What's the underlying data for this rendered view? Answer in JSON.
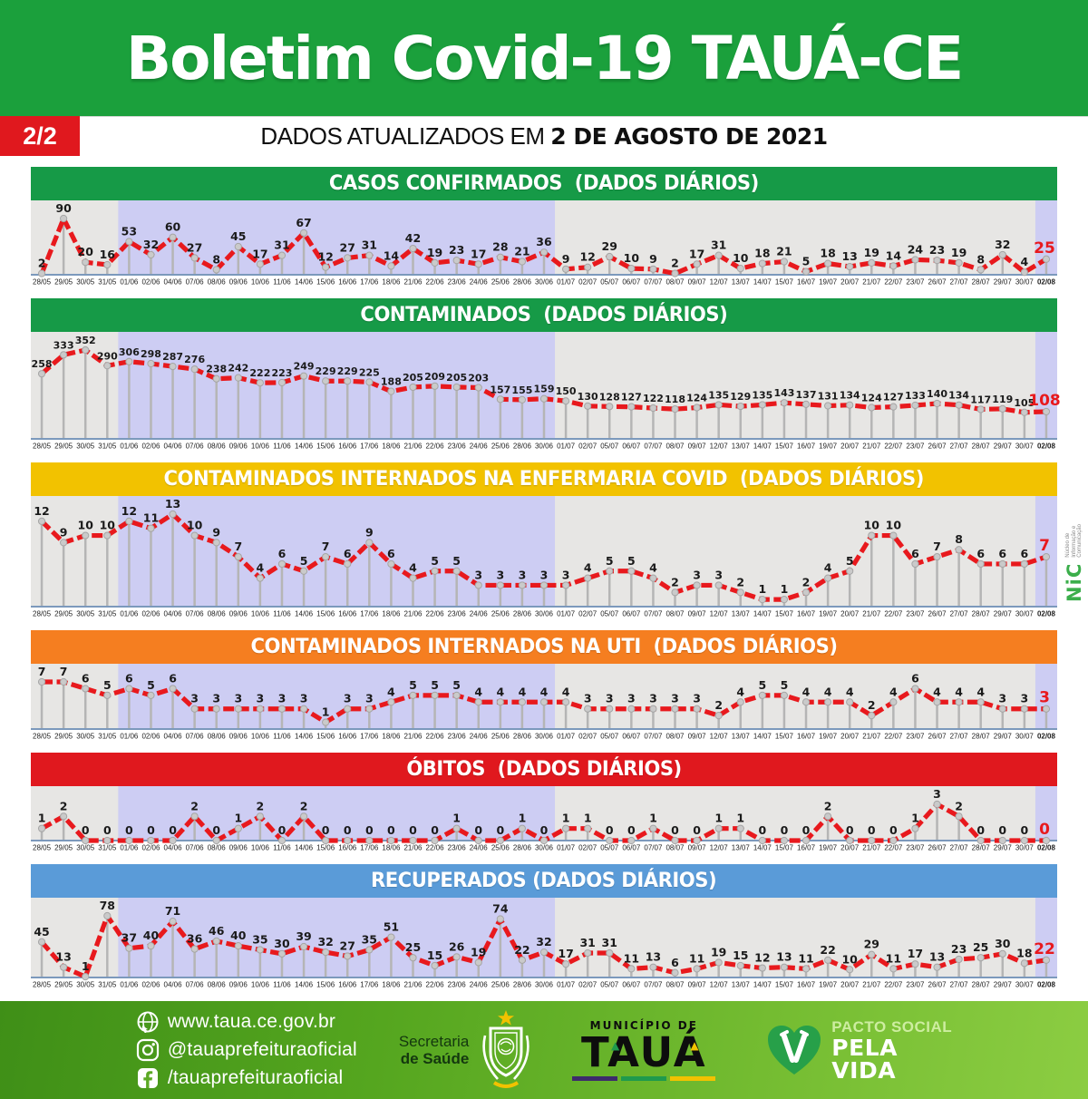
{
  "header": {
    "page_badge": "2/2",
    "title": "Boletim Covid-19 TAUÁ-CE",
    "updated_prefix": "DADOS ATUALIZADOS EM ",
    "updated_date": "2 DE AGOSTO DE 2021",
    "header_bg": "#1BA03C",
    "badge_bg": "#E0181E"
  },
  "plot_style": {
    "line_color": "#E8191D",
    "marker_color": "#CACACA",
    "marker_stroke": "#A5A5A5",
    "stem_color": "#B5B5B5",
    "axis_color": "#7C99BC",
    "bg_lavender": "#CDCDF3",
    "bg_gray": "#E7E6E4",
    "label_color": "#1A1A1A",
    "last_label_color": "#E8191D",
    "gray_band_point_ranges": [
      [
        0,
        3
      ],
      [
        24,
        45
      ]
    ]
  },
  "chart_data": [
    {
      "id": "confirmados",
      "type": "line",
      "title": "CASOS CONFIRMADOS  (DADOS DIÁRIOS)",
      "title_bg": "#169A47",
      "categories": [
        "28/05",
        "29/05",
        "30/05",
        "31/05",
        "01/06",
        "02/06",
        "04/06",
        "07/06",
        "08/06",
        "09/06",
        "10/06",
        "11/06",
        "14/06",
        "15/06",
        "16/06",
        "17/06",
        "18/06",
        "21/06",
        "22/06",
        "23/06",
        "24/06",
        "25/06",
        "28/06",
        "30/06",
        "01/07",
        "02/07",
        "05/07",
        "06/07",
        "07/07",
        "08/07",
        "09/07",
        "12/07",
        "13/07",
        "14/07",
        "15/07",
        "16/07",
        "19/07",
        "20/07",
        "21/07",
        "22/07",
        "23/07",
        "26/07",
        "27/07",
        "28/07",
        "29/07",
        "30/07",
        "02/08"
      ],
      "values": [
        2,
        90,
        20,
        16,
        53,
        32,
        60,
        27,
        8,
        45,
        17,
        31,
        67,
        12,
        27,
        31,
        14,
        42,
        19,
        23,
        17,
        28,
        21,
        36,
        9,
        12,
        29,
        10,
        9,
        2,
        17,
        31,
        10,
        18,
        21,
        5,
        18,
        13,
        19,
        14,
        24,
        23,
        19,
        8,
        32,
        4,
        25
      ],
      "ylim": [
        0,
        90
      ],
      "grid": false,
      "legend": "none"
    },
    {
      "id": "contaminados",
      "type": "line",
      "title": "CONTAMINADOS  (DADOS DIÁRIOS)",
      "title_bg": "#169A47",
      "categories": [
        "28/05",
        "29/05",
        "30/05",
        "31/05",
        "01/06",
        "02/06",
        "04/06",
        "07/06",
        "08/06",
        "09/06",
        "10/06",
        "11/06",
        "14/06",
        "15/06",
        "16/06",
        "17/06",
        "18/06",
        "21/06",
        "22/06",
        "23/06",
        "24/06",
        "25/06",
        "28/06",
        "30/06",
        "01/07",
        "02/07",
        "05/07",
        "06/07",
        "07/07",
        "08/07",
        "09/07",
        "12/07",
        "13/07",
        "14/07",
        "15/07",
        "16/07",
        "19/07",
        "20/07",
        "21/07",
        "22/07",
        "23/07",
        "26/07",
        "27/07",
        "28/07",
        "29/07",
        "30/07",
        "02/08"
      ],
      "values": [
        258,
        333,
        352,
        290,
        306,
        298,
        287,
        276,
        238,
        242,
        222,
        223,
        249,
        229,
        229,
        225,
        188,
        205,
        209,
        205,
        203,
        157,
        155,
        159,
        150,
        130,
        128,
        127,
        122,
        118,
        124,
        135,
        129,
        135,
        143,
        137,
        131,
        134,
        124,
        127,
        133,
        140,
        134,
        117,
        119,
        105,
        108
      ],
      "ylim": [
        0,
        352
      ],
      "grid": false,
      "legend": "none"
    },
    {
      "id": "enfermaria",
      "type": "line",
      "title": "CONTAMINADOS INTERNADOS NA ENFERMARIA COVID  (DADOS DIÁRIOS)",
      "title_bg": "#F2C200",
      "categories": [
        "28/05",
        "29/05",
        "30/05",
        "31/05",
        "01/06",
        "02/06",
        "04/06",
        "07/06",
        "08/06",
        "09/06",
        "10/06",
        "11/06",
        "14/06",
        "15/06",
        "16/06",
        "17/06",
        "18/06",
        "21/06",
        "22/06",
        "23/06",
        "24/06",
        "25/06",
        "28/06",
        "30/06",
        "01/07",
        "02/07",
        "05/07",
        "06/07",
        "07/07",
        "08/07",
        "09/07",
        "12/07",
        "13/07",
        "14/07",
        "15/07",
        "16/07",
        "19/07",
        "20/07",
        "21/07",
        "22/07",
        "23/07",
        "26/07",
        "27/07",
        "28/07",
        "29/07",
        "30/07",
        "02/08"
      ],
      "values": [
        12,
        9,
        10,
        10,
        12,
        11,
        13,
        10,
        9,
        7,
        4,
        6,
        5,
        7,
        6,
        9,
        6,
        4,
        5,
        5,
        3,
        3,
        3,
        3,
        3,
        4,
        5,
        5,
        4,
        2,
        3,
        3,
        2,
        1,
        1,
        2,
        4,
        5,
        10,
        10,
        6,
        7,
        8,
        6,
        6,
        6,
        7
      ],
      "ylim": [
        0,
        13
      ],
      "grid": false,
      "legend": "none"
    },
    {
      "id": "uti",
      "type": "line",
      "title": "CONTAMINADOS INTERNADOS NA UTI  (DADOS DIÁRIOS)",
      "title_bg": "#F57E20",
      "categories": [
        "28/05",
        "29/05",
        "30/05",
        "31/05",
        "01/06",
        "02/06",
        "04/06",
        "07/06",
        "08/06",
        "09/06",
        "10/06",
        "11/06",
        "14/06",
        "15/06",
        "16/06",
        "17/06",
        "18/06",
        "21/06",
        "22/06",
        "23/06",
        "24/06",
        "25/06",
        "28/06",
        "30/06",
        "01/07",
        "02/07",
        "05/07",
        "06/07",
        "07/07",
        "08/07",
        "09/07",
        "12/07",
        "13/07",
        "14/07",
        "15/07",
        "16/07",
        "19/07",
        "20/07",
        "21/07",
        "22/07",
        "23/07",
        "26/07",
        "27/07",
        "28/07",
        "29/07",
        "30/07",
        "02/08"
      ],
      "values": [
        7,
        7,
        6,
        5,
        6,
        5,
        6,
        3,
        3,
        3,
        3,
        3,
        3,
        1,
        3,
        3,
        4,
        5,
        5,
        5,
        4,
        4,
        4,
        4,
        4,
        3,
        3,
        3,
        3,
        3,
        3,
        2,
        4,
        5,
        5,
        4,
        4,
        4,
        2,
        4,
        6,
        4,
        4,
        4,
        3,
        3,
        3
      ],
      "ylim": [
        0,
        7
      ],
      "grid": false,
      "legend": "none"
    },
    {
      "id": "obitos",
      "type": "line",
      "title": "ÓBITOS  (DADOS DIÁRIOS)",
      "title_bg": "#E0181E",
      "categories": [
        "28/05",
        "29/05",
        "30/05",
        "31/05",
        "01/06",
        "02/06",
        "04/06",
        "07/06",
        "08/06",
        "09/06",
        "10/06",
        "11/06",
        "14/06",
        "15/06",
        "16/06",
        "17/06",
        "18/06",
        "21/06",
        "22/06",
        "23/06",
        "24/06",
        "25/06",
        "28/06",
        "30/06",
        "01/07",
        "02/07",
        "05/07",
        "06/07",
        "07/07",
        "08/07",
        "09/07",
        "12/07",
        "13/07",
        "14/07",
        "15/07",
        "16/07",
        "19/07",
        "20/07",
        "21/07",
        "22/07",
        "23/07",
        "26/07",
        "27/07",
        "28/07",
        "29/07",
        "30/07",
        "02/08"
      ],
      "values": [
        1,
        2,
        0,
        0,
        0,
        0,
        0,
        2,
        0,
        1,
        2,
        0,
        2,
        0,
        0,
        0,
        0,
        0,
        0,
        1,
        0,
        0,
        1,
        0,
        1,
        1,
        0,
        0,
        1,
        0,
        0,
        1,
        1,
        0,
        0,
        0,
        2,
        0,
        0,
        0,
        1,
        3,
        2,
        0,
        0,
        0,
        0
      ],
      "ylim": [
        0,
        3
      ],
      "grid": false,
      "legend": "none"
    },
    {
      "id": "recuperados",
      "type": "line",
      "title": "RECUPERADOS (DADOS DIÁRIOS)",
      "title_bg": "#5A9BD8",
      "categories": [
        "28/05",
        "29/05",
        "30/05",
        "31/05",
        "01/06",
        "02/06",
        "04/06",
        "07/06",
        "08/06",
        "09/06",
        "10/06",
        "11/06",
        "14/06",
        "15/06",
        "16/06",
        "17/06",
        "18/06",
        "21/06",
        "22/06",
        "23/06",
        "24/06",
        "25/06",
        "28/06",
        "30/06",
        "01/07",
        "02/07",
        "05/07",
        "06/07",
        "07/07",
        "08/07",
        "09/07",
        "12/07",
        "13/07",
        "14/07",
        "15/07",
        "16/07",
        "19/07",
        "20/07",
        "21/07",
        "22/07",
        "23/07",
        "26/07",
        "27/07",
        "28/07",
        "29/07",
        "30/07",
        "02/08"
      ],
      "values": [
        45,
        13,
        1,
        78,
        37,
        40,
        71,
        36,
        46,
        40,
        35,
        30,
        39,
        32,
        27,
        35,
        51,
        25,
        15,
        26,
        19,
        74,
        22,
        32,
        17,
        31,
        31,
        11,
        13,
        6,
        11,
        19,
        15,
        12,
        13,
        11,
        22,
        10,
        29,
        11,
        17,
        13,
        23,
        25,
        30,
        18,
        22
      ],
      "ylim": [
        0,
        78
      ],
      "grid": false,
      "legend": "none"
    }
  ],
  "nic": {
    "name": "NiC",
    "caption_lines": [
      "Núcleo de",
      "Informação e",
      "Comunicação"
    ]
  },
  "footer": {
    "website": "www.taua.ce.gov.br",
    "instagram": "@tauaprefeituraoficial",
    "facebook": "/tauaprefeituraoficial",
    "secretaria_line1": "Secretaria",
    "secretaria_line2": "de Saúde",
    "municipio_label": "MUNICÍPIO DE",
    "municipio_name": "TAUÁ",
    "pacto_line1": "PACTO SOCIAL",
    "pacto_line2": "PELA",
    "pacto_line3": "VIDA",
    "bg_green_dark": "#3F8F17",
    "bg_green_light": "#8CCD42"
  }
}
